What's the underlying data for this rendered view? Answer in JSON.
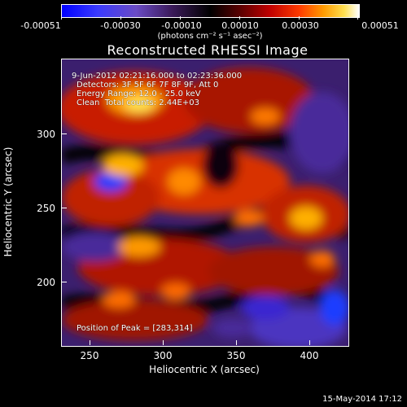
{
  "colorbar": {
    "tick_labels": [
      "-0.00051",
      "-0.00030",
      "-0.00010",
      "0.00010",
      "0.00030",
      "0.00051"
    ],
    "units": "(photons cm⁻² s⁻¹ asec⁻²)"
  },
  "title": "Reconstructed RHESSI Image",
  "info": {
    "line1": "9-Jun-2012 02:21:16.000 to 02:23:36.000",
    "line2": "Detectors: 3F 5F 6F 7F 8F 9F, Att 0",
    "line3": "Energy Range: 12.0 - 25.0 keV",
    "line4": "Clean  Total counts: 2.44E+03",
    "peak": "Position of Peak = [283,314]"
  },
  "axes": {
    "xlabel": "Heliocentric X (arcsec)",
    "ylabel": "Heliocentric Y (arcsec)",
    "x_ticks": [
      "250",
      "300",
      "350",
      "400"
    ],
    "y_ticks": [
      "300",
      "250",
      "200"
    ]
  },
  "footer": "15-May-2014 17:12",
  "colors": {
    "negative_high": "#0000ff",
    "background_mid": "#3b1f6e",
    "positive_mid": "#ff3b00",
    "positive_high": "#ffffff"
  }
}
